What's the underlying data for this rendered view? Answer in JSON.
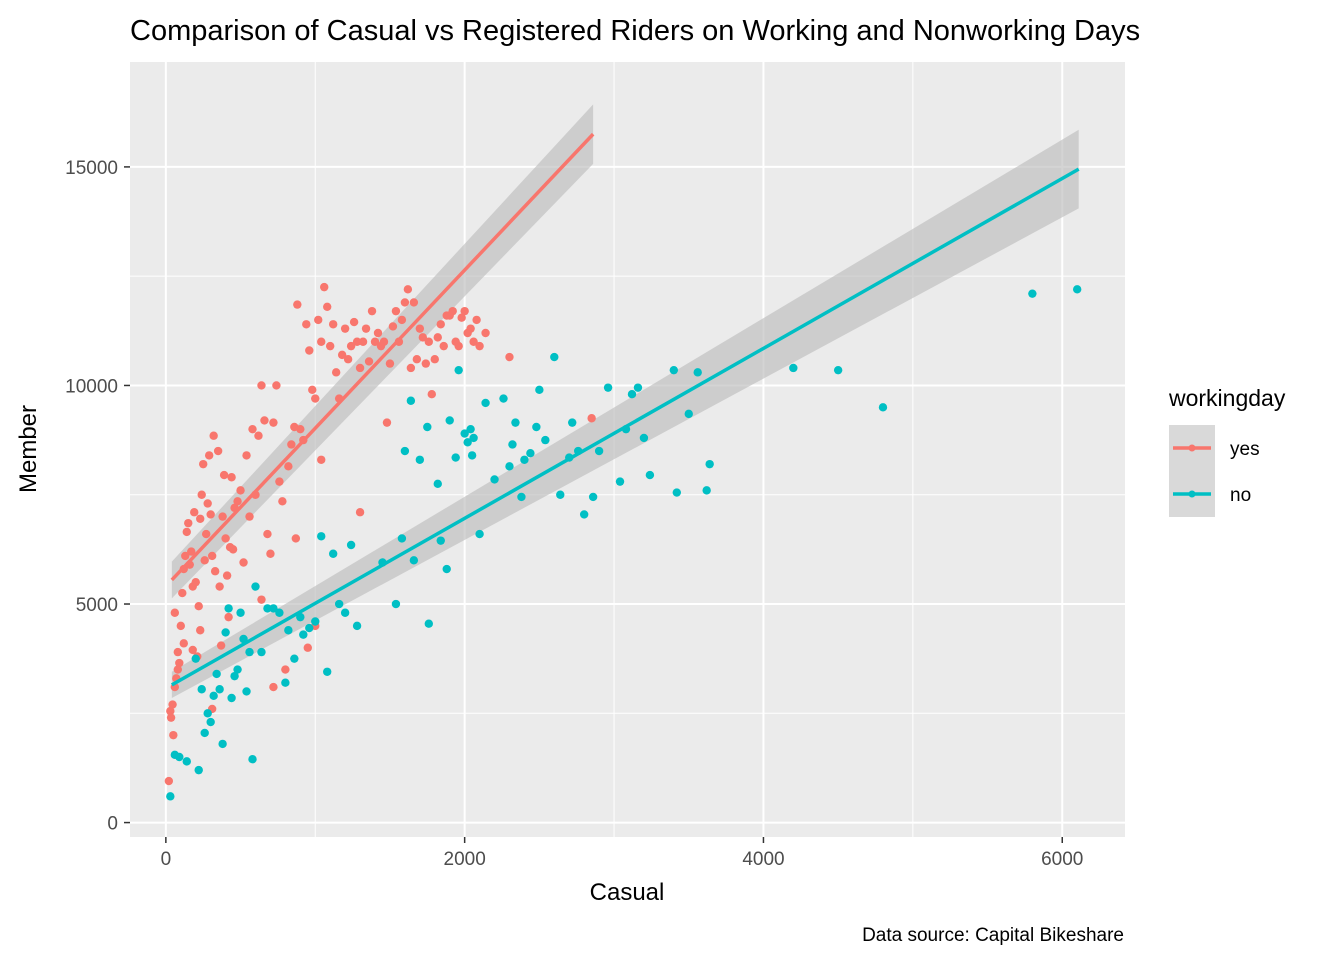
{
  "chart_data": {
    "type": "scatter",
    "title": "Comparison of Casual vs Registered Riders on Working and Nonworking Days",
    "xlabel": "Casual",
    "ylabel": "Member",
    "caption": "Data source: Capital Bikeshare",
    "xlim": [
      -240,
      6420
    ],
    "ylim": [
      -330,
      17400
    ],
    "x_ticks": [
      0,
      2000,
      4000,
      6000
    ],
    "y_ticks": [
      0,
      5000,
      10000,
      15000
    ],
    "x_tick_labels": [
      "0",
      "2000",
      "4000",
      "6000"
    ],
    "y_tick_labels": [
      "0",
      "5000",
      "10000",
      "15000"
    ],
    "x_minor_ticks": [
      1000,
      3000,
      5000
    ],
    "y_minor_ticks": [
      2500,
      7500,
      12500
    ],
    "grid": true,
    "legend": {
      "title": "workingday",
      "position": "right"
    },
    "colors": {
      "panel": "#ebebeb",
      "grid": "#ffffff",
      "band": "#bdbdbd"
    },
    "series": [
      {
        "name": "yes",
        "color": "#f8766d",
        "fit": {
          "x0": 40,
          "x1": 2860,
          "y0": 5550,
          "y1": 15750,
          "se0": 420,
          "se1": 680
        },
        "points": [
          [
            20,
            950
          ],
          [
            30,
            2550
          ],
          [
            35,
            2400
          ],
          [
            50,
            2000
          ],
          [
            60,
            3100
          ],
          [
            70,
            3300
          ],
          [
            60,
            4800
          ],
          [
            80,
            3900
          ],
          [
            90,
            3650
          ],
          [
            100,
            4500
          ],
          [
            110,
            5250
          ],
          [
            120,
            5800
          ],
          [
            130,
            6100
          ],
          [
            140,
            6650
          ],
          [
            150,
            6850
          ],
          [
            160,
            5900
          ],
          [
            170,
            6200
          ],
          [
            180,
            5400
          ],
          [
            190,
            7100
          ],
          [
            200,
            5500
          ],
          [
            210,
            3800
          ],
          [
            220,
            4950
          ],
          [
            230,
            6950
          ],
          [
            240,
            7500
          ],
          [
            250,
            8200
          ],
          [
            260,
            6000
          ],
          [
            270,
            6600
          ],
          [
            280,
            7300
          ],
          [
            290,
            8400
          ],
          [
            300,
            7050
          ],
          [
            310,
            6100
          ],
          [
            320,
            8850
          ],
          [
            330,
            5750
          ],
          [
            350,
            8500
          ],
          [
            360,
            5400
          ],
          [
            370,
            4050
          ],
          [
            380,
            7000
          ],
          [
            390,
            7950
          ],
          [
            400,
            6500
          ],
          [
            410,
            5650
          ],
          [
            420,
            4700
          ],
          [
            430,
            6300
          ],
          [
            440,
            7900
          ],
          [
            450,
            6250
          ],
          [
            460,
            7200
          ],
          [
            480,
            7350
          ],
          [
            500,
            7600
          ],
          [
            520,
            5950
          ],
          [
            540,
            8400
          ],
          [
            560,
            7000
          ],
          [
            580,
            9000
          ],
          [
            600,
            7500
          ],
          [
            620,
            8850
          ],
          [
            640,
            10000
          ],
          [
            660,
            9200
          ],
          [
            680,
            6600
          ],
          [
            700,
            6150
          ],
          [
            720,
            9150
          ],
          [
            740,
            10000
          ],
          [
            760,
            7800
          ],
          [
            780,
            7350
          ],
          [
            800,
            3500
          ],
          [
            820,
            8150
          ],
          [
            840,
            8650
          ],
          [
            860,
            9050
          ],
          [
            870,
            6500
          ],
          [
            880,
            11850
          ],
          [
            900,
            9000
          ],
          [
            920,
            8750
          ],
          [
            940,
            11400
          ],
          [
            960,
            10800
          ],
          [
            980,
            9900
          ],
          [
            1000,
            9700
          ],
          [
            1020,
            11500
          ],
          [
            1040,
            11000
          ],
          [
            1060,
            12250
          ],
          [
            1080,
            11800
          ],
          [
            1100,
            10900
          ],
          [
            1120,
            11400
          ],
          [
            1140,
            10300
          ],
          [
            1160,
            9700
          ],
          [
            1180,
            10700
          ],
          [
            1200,
            11300
          ],
          [
            1220,
            10600
          ],
          [
            1240,
            10900
          ],
          [
            1260,
            11450
          ],
          [
            1280,
            11000
          ],
          [
            1300,
            10400
          ],
          [
            1320,
            11000
          ],
          [
            1340,
            11300
          ],
          [
            1360,
            10550
          ],
          [
            1380,
            11700
          ],
          [
            1400,
            11000
          ],
          [
            1420,
            11200
          ],
          [
            1440,
            10900
          ],
          [
            1460,
            11000
          ],
          [
            1480,
            9150
          ],
          [
            1500,
            10500
          ],
          [
            1520,
            11350
          ],
          [
            1540,
            11700
          ],
          [
            1560,
            11000
          ],
          [
            1580,
            11500
          ],
          [
            1600,
            11900
          ],
          [
            1620,
            12200
          ],
          [
            1640,
            10400
          ],
          [
            1660,
            11900
          ],
          [
            1680,
            10600
          ],
          [
            1700,
            11300
          ],
          [
            1720,
            11100
          ],
          [
            1740,
            10500
          ],
          [
            1760,
            11000
          ],
          [
            1780,
            9800
          ],
          [
            1800,
            10600
          ],
          [
            1820,
            11100
          ],
          [
            1840,
            11400
          ],
          [
            1860,
            10900
          ],
          [
            1880,
            11600
          ],
          [
            1900,
            11600
          ],
          [
            1920,
            11700
          ],
          [
            1940,
            11000
          ],
          [
            1960,
            10900
          ],
          [
            1980,
            11550
          ],
          [
            2000,
            11700
          ],
          [
            2020,
            11200
          ],
          [
            2040,
            11300
          ],
          [
            2060,
            11000
          ],
          [
            2080,
            11500
          ],
          [
            2100,
            10900
          ],
          [
            2140,
            11200
          ],
          [
            2300,
            10650
          ],
          [
            2850,
            9250
          ],
          [
            1300,
            7100
          ],
          [
            1040,
            8300
          ],
          [
            640,
            5100
          ],
          [
            720,
            3100
          ],
          [
            950,
            4000
          ],
          [
            1000,
            4500
          ],
          [
            180,
            3950
          ],
          [
            120,
            4100
          ],
          [
            230,
            4400
          ],
          [
            310,
            2600
          ],
          [
            80,
            3500
          ],
          [
            45,
            2700
          ]
        ]
      },
      {
        "name": "no",
        "color": "#00bfc4",
        "fit": {
          "x0": 40,
          "x1": 6110,
          "y0": 3150,
          "y1": 14950,
          "se0": 300,
          "se1": 900
        },
        "points": [
          [
            30,
            600
          ],
          [
            60,
            1550
          ],
          [
            90,
            1500
          ],
          [
            140,
            1400
          ],
          [
            200,
            3750
          ],
          [
            220,
            1200
          ],
          [
            240,
            3050
          ],
          [
            260,
            2050
          ],
          [
            280,
            2500
          ],
          [
            300,
            2300
          ],
          [
            320,
            2900
          ],
          [
            340,
            3400
          ],
          [
            360,
            3050
          ],
          [
            380,
            1800
          ],
          [
            400,
            4350
          ],
          [
            420,
            4900
          ],
          [
            440,
            2850
          ],
          [
            460,
            3350
          ],
          [
            480,
            3500
          ],
          [
            500,
            4800
          ],
          [
            520,
            4200
          ],
          [
            540,
            3000
          ],
          [
            560,
            3900
          ],
          [
            580,
            1450
          ],
          [
            600,
            5400
          ],
          [
            640,
            3900
          ],
          [
            680,
            4900
          ],
          [
            720,
            4900
          ],
          [
            760,
            4800
          ],
          [
            800,
            3200
          ],
          [
            820,
            4400
          ],
          [
            860,
            3750
          ],
          [
            900,
            4700
          ],
          [
            920,
            4300
          ],
          [
            960,
            4450
          ],
          [
            1000,
            4600
          ],
          [
            1040,
            6550
          ],
          [
            1080,
            3450
          ],
          [
            1120,
            6150
          ],
          [
            1160,
            5000
          ],
          [
            1200,
            4800
          ],
          [
            1240,
            6350
          ],
          [
            1280,
            4500
          ],
          [
            1540,
            5000
          ],
          [
            1580,
            6500
          ],
          [
            1600,
            8500
          ],
          [
            1640,
            9650
          ],
          [
            1700,
            8300
          ],
          [
            1760,
            4550
          ],
          [
            1820,
            7750
          ],
          [
            1840,
            6450
          ],
          [
            1880,
            5800
          ],
          [
            1900,
            9200
          ],
          [
            1940,
            8350
          ],
          [
            1960,
            10350
          ],
          [
            2000,
            8900
          ],
          [
            2020,
            8700
          ],
          [
            2040,
            9000
          ],
          [
            2060,
            8800
          ],
          [
            2100,
            6600
          ],
          [
            2140,
            9600
          ],
          [
            2200,
            7850
          ],
          [
            2260,
            9700
          ],
          [
            2300,
            8150
          ],
          [
            2320,
            8650
          ],
          [
            2340,
            9150
          ],
          [
            2380,
            7450
          ],
          [
            2400,
            8300
          ],
          [
            2440,
            8450
          ],
          [
            2480,
            9050
          ],
          [
            2540,
            8750
          ],
          [
            2600,
            10650
          ],
          [
            2640,
            7500
          ],
          [
            2700,
            8350
          ],
          [
            2720,
            9150
          ],
          [
            2760,
            8500
          ],
          [
            2800,
            7050
          ],
          [
            2860,
            7450
          ],
          [
            2900,
            8500
          ],
          [
            2960,
            9950
          ],
          [
            3040,
            7800
          ],
          [
            3080,
            9000
          ],
          [
            3120,
            9800
          ],
          [
            3160,
            9950
          ],
          [
            3200,
            8800
          ],
          [
            3240,
            7950
          ],
          [
            3400,
            10350
          ],
          [
            3420,
            7550
          ],
          [
            3500,
            9350
          ],
          [
            3560,
            10300
          ],
          [
            3620,
            7600
          ],
          [
            3640,
            8200
          ],
          [
            4200,
            10400
          ],
          [
            4500,
            10350
          ],
          [
            4800,
            9500
          ],
          [
            5800,
            12100
          ],
          [
            6100,
            12200
          ],
          [
            1450,
            5950
          ],
          [
            1660,
            6000
          ],
          [
            1750,
            9050
          ],
          [
            2050,
            8400
          ],
          [
            2500,
            9900
          ]
        ]
      }
    ]
  }
}
